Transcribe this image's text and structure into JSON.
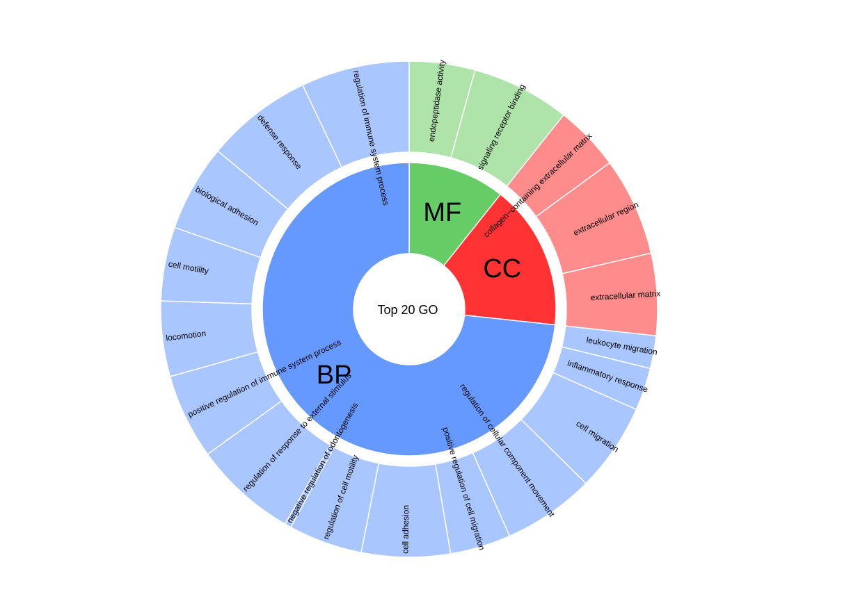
{
  "chart_data": {
    "type": "sunburst",
    "title": "",
    "center_label": "Top 20 GO",
    "start_angle_deg": 0,
    "direction": "clockwise",
    "categories": [
      {
        "name": "MF",
        "color": "#66cc66",
        "light_color": "#aee3aa",
        "terms": [
          {
            "name": "endopeptidase activity",
            "value": 4
          },
          {
            "name": "signaling receptor binding",
            "value": 6
          }
        ]
      },
      {
        "name": "CC",
        "color": "#ff3333",
        "light_color": "#ff8c8c",
        "terms": [
          {
            "name": "collagen−containing extracellular matrix",
            "value": 4
          },
          {
            "name": "extracellular region",
            "value": 6
          },
          {
            "name": "extracellular matrix",
            "value": 5
          }
        ]
      },
      {
        "name": "BP",
        "color": "#6699ff",
        "light_color": "#aac6ff",
        "terms": [
          {
            "name": "leukocyte migration",
            "value": 2
          },
          {
            "name": "inflammatory response",
            "value": 2.6
          },
          {
            "name": "cell migration",
            "value": 5.4
          },
          {
            "name": "regulation of cellular component movement",
            "value": 5.6
          },
          {
            "name": "positive regulation of cell migration",
            "value": 3.7
          },
          {
            "name": "cell adhesion",
            "value": 5.4
          },
          {
            "name": "regulation of cell motility",
            "value": 4.5
          },
          {
            "name": "negative regulation of odontogenesis",
            "value": 0.4
          },
          {
            "name": "regulation of response to external stimulus",
            "value": 6.3
          },
          {
            "name": "positive regulation of immune system process",
            "value": 5.2
          },
          {
            "name": "locomotion",
            "value": 4.6
          },
          {
            "name": "cell motility",
            "value": 4.5
          },
          {
            "name": "biological adhesion",
            "value": 5.3
          },
          {
            "name": "defense response",
            "value": 6.5
          },
          {
            "name": "regulation of immune system process",
            "value": 6.6
          }
        ]
      }
    ]
  }
}
